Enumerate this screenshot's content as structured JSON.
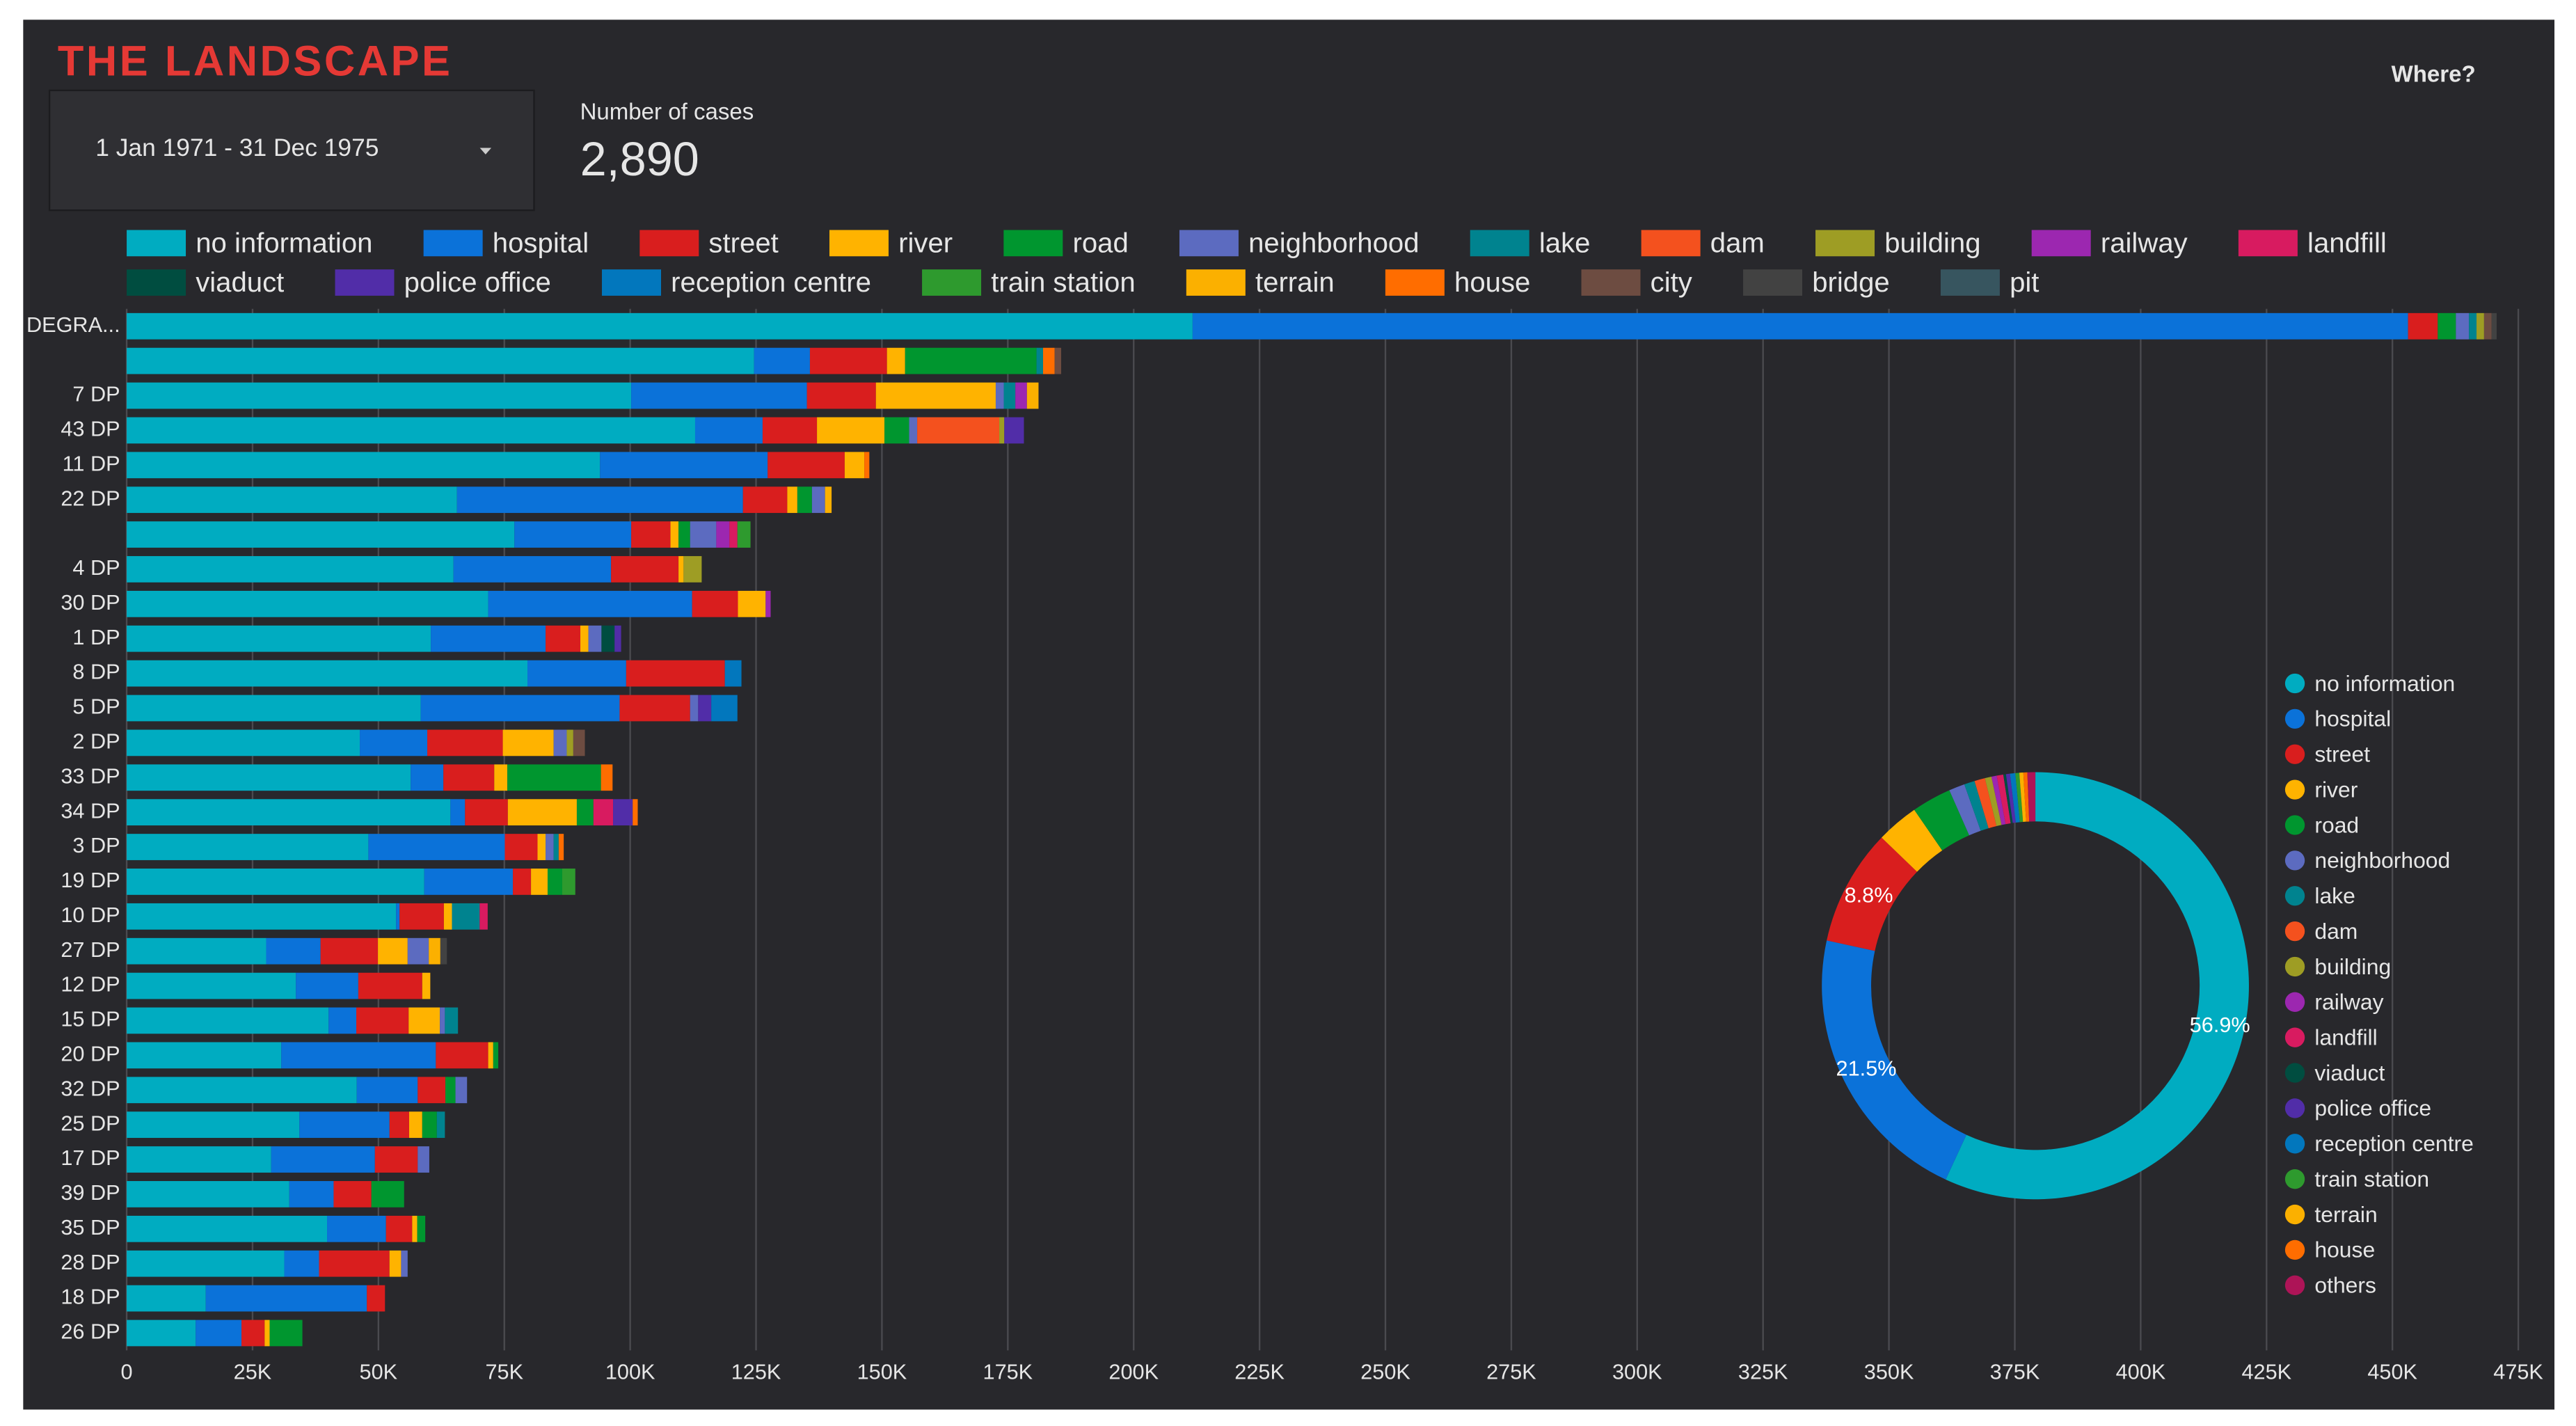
{
  "header": {
    "title": "THE LANDSCAPE",
    "date_range": "1 Jan 1971 - 31 Dec 1975",
    "metric_label": "Number of cases",
    "metric_value": "2,890",
    "where": "Where?"
  },
  "chart_data": [
    {
      "type": "stacked_barh",
      "categories": [
        "DEGRA...",
        null,
        "7 DP",
        "43 DP",
        "11 DP",
        "22 DP",
        null,
        "4 DP",
        "30 DP",
        "1 DP",
        "8 DP",
        "5 DP",
        "2 DP",
        "33 DP",
        "34 DP",
        "3 DP",
        "19 DP",
        "10 DP",
        "27 DP",
        "12 DP",
        "15 DP",
        "20 DP",
        "32 DP",
        "25 DP",
        "17 DP",
        "39 DP",
        "35 DP",
        "28 DP",
        "18 DP",
        "26 DP"
      ],
      "xlim": [
        0,
        475000
      ],
      "xticks": [
        0,
        {
          "value": 25000,
          "label": "25K"
        },
        {
          "value": 50000,
          "label": "50K"
        },
        {
          "value": 75000,
          "label": "75K"
        },
        {
          "value": 100000,
          "label": "100K"
        },
        {
          "value": 125000,
          "label": "125K"
        },
        {
          "value": 150000,
          "label": "150K"
        },
        {
          "value": 175000,
          "label": "175K"
        },
        {
          "value": 200000,
          "label": "200K"
        },
        {
          "value": 225000,
          "label": "225K"
        },
        {
          "value": 250000,
          "label": "250K"
        },
        {
          "value": 275000,
          "label": "275K"
        },
        {
          "value": 300000,
          "label": "300K"
        },
        {
          "value": 325000,
          "label": "325K"
        },
        {
          "value": 350000,
          "label": "350K"
        },
        {
          "value": 375000,
          "label": "375K"
        },
        {
          "value": 400000,
          "label": "400K"
        },
        {
          "value": 425000,
          "label": "425K"
        },
        {
          "value": 450000,
          "label": "450K"
        },
        {
          "value": 475000,
          "label": "475K"
        }
      ],
      "grid": true,
      "legend": "top",
      "series": [
        {
          "name": "no information",
          "color": "#00acc1",
          "values": [
            211700,
            124600,
            100200,
            112900,
            94000,
            65600,
            77000,
            64900,
            71800,
            60400,
            79600,
            58400,
            46300,
            56400,
            64300,
            48000,
            59100,
            53500,
            27700,
            33600,
            40100,
            30700,
            45700,
            34300,
            28700,
            32300,
            39800,
            31300,
            15700,
            13700
          ]
        },
        {
          "name": "hospital",
          "color": "#0b72d9",
          "values": [
            241400,
            11100,
            34900,
            13400,
            33300,
            56800,
            23200,
            31300,
            40500,
            22800,
            19600,
            39500,
            13400,
            6500,
            2900,
            27100,
            17600,
            700,
            10800,
            12400,
            5500,
            30700,
            12100,
            17900,
            20600,
            8800,
            11700,
            6900,
            32000,
            9100
          ]
        },
        {
          "name": "street",
          "color": "#d91e1e",
          "values": [
            5900,
            15300,
            13700,
            10800,
            15300,
            8800,
            7800,
            13400,
            9100,
            6900,
            19600,
            14000,
            15000,
            10100,
            8500,
            6500,
            3600,
            8800,
            11400,
            12700,
            10400,
            10400,
            5500,
            3900,
            8500,
            7500,
            5200,
            14000,
            3600,
            4600
          ]
        },
        {
          "name": "river",
          "color": "#ffb300",
          "values": [
            0,
            3600,
            23800,
            13400,
            3900,
            2000,
            1600,
            1000,
            5500,
            1600,
            0,
            0,
            10100,
            2600,
            13700,
            1600,
            3300,
            1600,
            5900,
            1600,
            6200,
            1000,
            0,
            2600,
            0,
            0,
            1000,
            2300,
            0,
            1000
          ]
        },
        {
          "name": "road",
          "color": "#00962f",
          "values": [
            3600,
            26100,
            0,
            4900,
            0,
            2900,
            2300,
            0,
            0,
            0,
            0,
            0,
            0,
            18600,
            3300,
            0,
            2900,
            0,
            0,
            0,
            0,
            1000,
            2000,
            2900,
            0,
            6500,
            1600,
            0,
            0,
            6500
          ]
        },
        {
          "name": "neighborhood",
          "color": "#5c6bc0",
          "values": [
            2600,
            0,
            1600,
            1600,
            0,
            2600,
            5200,
            0,
            0,
            2600,
            0,
            1600,
            2600,
            0,
            0,
            1600,
            0,
            0,
            4200,
            0,
            1000,
            0,
            2300,
            0,
            2300,
            0,
            0,
            1300,
            0,
            0
          ]
        },
        {
          "name": "lake",
          "color": "#00838f",
          "values": [
            1500,
            1300,
            2300,
            0,
            0,
            0,
            0,
            0,
            0,
            0,
            0,
            0,
            0,
            0,
            0,
            1000,
            0,
            5500,
            0,
            0,
            2600,
            0,
            0,
            1600,
            0,
            0,
            0,
            0,
            0,
            0
          ]
        },
        {
          "name": "dam",
          "color": "#f4511e",
          "values": [
            0,
            0,
            0,
            16300,
            0,
            0,
            0,
            0,
            0,
            0,
            0,
            0,
            0,
            0,
            0,
            0,
            0,
            0,
            0,
            0,
            0,
            0,
            0,
            0,
            0,
            0,
            0,
            0,
            0,
            0
          ]
        },
        {
          "name": "building",
          "color": "#9e9d24",
          "values": [
            1500,
            0,
            0,
            1000,
            0,
            0,
            0,
            3600,
            0,
            0,
            0,
            0,
            1300,
            0,
            0,
            0,
            0,
            0,
            0,
            0,
            0,
            0,
            0,
            0,
            0,
            0,
            0,
            0,
            0,
            0
          ]
        },
        {
          "name": "railway",
          "color": "#9c27b0",
          "values": [
            0,
            0,
            2300,
            0,
            0,
            0,
            2600,
            0,
            1000,
            0,
            0,
            0,
            0,
            0,
            0,
            0,
            0,
            0,
            0,
            0,
            0,
            0,
            0,
            0,
            0,
            0,
            0,
            0,
            0,
            0
          ]
        },
        {
          "name": "landfill",
          "color": "#d81b60",
          "values": [
            0,
            0,
            0,
            0,
            0,
            0,
            1600,
            0,
            0,
            0,
            0,
            0,
            0,
            0,
            3900,
            0,
            0,
            1600,
            0,
            0,
            0,
            0,
            0,
            0,
            0,
            0,
            0,
            0,
            0,
            0
          ]
        },
        {
          "name": "viaduct",
          "color": "#004d40",
          "values": [
            0,
            0,
            0,
            0,
            0,
            0,
            0,
            0,
            0,
            2600,
            0,
            0,
            0,
            0,
            0,
            0,
            0,
            0,
            0,
            0,
            0,
            0,
            0,
            0,
            0,
            0,
            0,
            0,
            0,
            0
          ]
        },
        {
          "name": "police office",
          "color": "#512da8",
          "values": [
            0,
            0,
            0,
            3900,
            0,
            0,
            0,
            0,
            0,
            1300,
            0,
            2600,
            0,
            0,
            3900,
            0,
            0,
            0,
            0,
            0,
            0,
            0,
            0,
            0,
            0,
            0,
            0,
            0,
            0,
            0
          ]
        },
        {
          "name": "reception centre",
          "color": "#0277bd",
          "values": [
            0,
            0,
            0,
            0,
            0,
            0,
            0,
            0,
            0,
            0,
            3300,
            5200,
            0,
            0,
            0,
            0,
            0,
            0,
            0,
            0,
            0,
            0,
            0,
            0,
            0,
            0,
            0,
            0,
            0,
            0
          ]
        },
        {
          "name": "train station",
          "color": "#2e9a2e",
          "values": [
            0,
            0,
            0,
            0,
            0,
            0,
            2600,
            0,
            0,
            0,
            0,
            0,
            0,
            0,
            0,
            0,
            2600,
            0,
            0,
            0,
            0,
            0,
            0,
            0,
            0,
            0,
            0,
            0,
            0,
            0
          ]
        },
        {
          "name": "terrain",
          "color": "#fbb000",
          "values": [
            0,
            0,
            2300,
            0,
            0,
            1300,
            0,
            0,
            0,
            0,
            0,
            0,
            0,
            0,
            0,
            0,
            0,
            0,
            2300,
            0,
            0,
            0,
            0,
            0,
            0,
            0,
            0,
            0,
            0,
            0
          ]
        },
        {
          "name": "house",
          "color": "#ff6d00",
          "values": [
            0,
            2300,
            0,
            0,
            1000,
            0,
            0,
            0,
            0,
            0,
            0,
            0,
            0,
            2300,
            1000,
            1000,
            0,
            0,
            0,
            0,
            0,
            0,
            0,
            0,
            0,
            0,
            0,
            0,
            0,
            0
          ]
        },
        {
          "name": "city",
          "color": "#6d4c41",
          "values": [
            1500,
            1300,
            0,
            0,
            0,
            0,
            0,
            0,
            0,
            0,
            0,
            0,
            2300,
            0,
            0,
            0,
            0,
            0,
            0,
            0,
            0,
            0,
            0,
            0,
            0,
            0,
            0,
            0,
            0,
            0
          ]
        },
        {
          "name": "bridge",
          "color": "#424242",
          "values": [
            1000,
            0,
            0,
            0,
            0,
            0,
            0,
            0,
            0,
            0,
            0,
            0,
            0,
            0,
            0,
            0,
            0,
            0,
            1300,
            0,
            0,
            0,
            0,
            0,
            0,
            0,
            0,
            0,
            0,
            0
          ]
        },
        {
          "name": "pit",
          "color": "#37555f",
          "values": [
            0,
            0,
            0,
            0,
            0,
            0,
            0,
            0,
            0,
            0,
            0,
            0,
            0,
            0,
            0,
            0,
            0,
            0,
            0,
            0,
            0,
            0,
            0,
            0,
            0,
            0,
            0,
            0,
            0,
            0
          ]
        }
      ]
    },
    {
      "type": "donut",
      "categories": [
        "no information",
        "hospital",
        "street",
        "river",
        "road",
        "neighborhood",
        "lake",
        "dam",
        "building",
        "railway",
        "landfill",
        "viaduct",
        "police office",
        "reception centre",
        "train station",
        "terrain",
        "house",
        "others"
      ],
      "values": [
        56.9,
        21.5,
        8.8,
        3.2,
        3,
        1.2,
        0.8,
        0.8,
        0.5,
        0.4,
        0.5,
        0.2,
        0.3,
        0.4,
        0.3,
        0.3,
        0.3,
        0.6
      ],
      "value_labels": [
        "56.9%",
        "21.5%",
        "8.8%",
        null,
        null,
        null,
        null,
        null,
        null,
        null,
        null,
        null,
        null,
        null,
        null,
        null,
        null,
        null
      ],
      "colors": [
        "#00acc1",
        "#0b72d9",
        "#d91e1e",
        "#ffb300",
        "#00962f",
        "#5c6bc0",
        "#00838f",
        "#f4511e",
        "#9e9d24",
        "#9c27b0",
        "#d81b60",
        "#004d40",
        "#512da8",
        "#0277bd",
        "#2e9a2e",
        "#fbb000",
        "#ff6d00",
        "#ad1457"
      ],
      "legend": "right"
    }
  ]
}
